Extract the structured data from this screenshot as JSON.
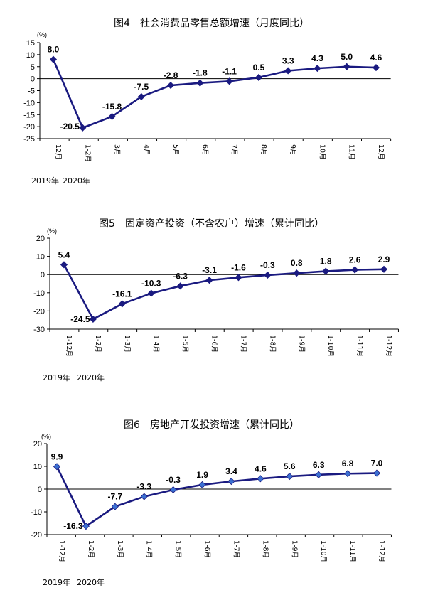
{
  "chart_data": [
    {
      "type": "line",
      "title": "图4　社会消费品零售总额增速（月度同比）",
      "unit_label": "(%)",
      "categories": [
        "12月",
        "1-2月",
        "3月",
        "4月",
        "5月",
        "6月",
        "7月",
        "8月",
        "9月",
        "10月",
        "11月",
        "12月"
      ],
      "values": [
        8.0,
        -20.5,
        -15.8,
        -7.5,
        -2.8,
        -1.8,
        -1.1,
        0.5,
        3.3,
        4.3,
        5.0,
        4.6
      ],
      "data_labels": [
        "8.0",
        "-20.5",
        "-15.8",
        "-7.5",
        "-2.8",
        "-1.8",
        "-1.1",
        "0.5",
        "3.3",
        "4.3",
        "5.0",
        "4.6"
      ],
      "yticks": [
        15,
        10,
        5,
        0,
        -5,
        -10,
        -15,
        -20,
        -25
      ],
      "ylim": [
        -25,
        15
      ],
      "year_labels": [
        "2019年",
        "2020年"
      ],
      "line_color": "#1a1a80",
      "marker_color": "#1a1a80",
      "marker": "diamond",
      "grid": false
    },
    {
      "type": "line",
      "title": "图5　固定资产投资（不含农户）增速（累计同比）",
      "unit_label": "(%)",
      "categories": [
        "1-12月",
        "1-2月",
        "1-3月",
        "1-4月",
        "1-5月",
        "1-6月",
        "1-7月",
        "1-8月",
        "1-9月",
        "1-10月",
        "1-11月",
        "1-12月"
      ],
      "values": [
        5.4,
        -24.5,
        -16.1,
        -10.3,
        -6.3,
        -3.1,
        -1.6,
        -0.3,
        0.8,
        1.8,
        2.6,
        2.9
      ],
      "data_labels": [
        "5.4",
        "-24.5",
        "-16.1",
        "-10.3",
        "-6.3",
        "-3.1",
        "-1.6",
        "-0.3",
        "0.8",
        "1.8",
        "2.6",
        "2.9"
      ],
      "yticks": [
        20,
        10,
        0,
        -10,
        -20,
        -30
      ],
      "ylim": [
        -30,
        20
      ],
      "year_labels": [
        "2019年",
        "2020年"
      ],
      "line_color": "#1a1a80",
      "marker_color": "#1a1a80",
      "marker": "diamond",
      "grid": false
    },
    {
      "type": "line",
      "title": "图6　房地产开发投资增速（累计同比）",
      "unit_label": "(%)",
      "categories": [
        "1-12月",
        "1-2月",
        "1-3月",
        "1-4月",
        "1-5月",
        "1-6月",
        "1-7月",
        "1-8月",
        "1-9月",
        "1-10月",
        "1-11月",
        "1-12月"
      ],
      "values": [
        9.9,
        -16.3,
        -7.7,
        -3.3,
        -0.3,
        1.9,
        3.4,
        4.6,
        5.6,
        6.3,
        6.8,
        7.0
      ],
      "data_labels": [
        "9.9",
        "-16.3",
        "-7.7",
        "-3.3",
        "-0.3",
        "1.9",
        "3.4",
        "4.6",
        "5.6",
        "6.3",
        "6.8",
        "7.0"
      ],
      "yticks": [
        20,
        10,
        0,
        -10,
        -20
      ],
      "ylim": [
        -20,
        20
      ],
      "year_labels": [
        "2019年",
        "2020年"
      ],
      "line_color": "#1a1a80",
      "marker_color": "#3b6fd1",
      "marker": "diamond",
      "grid": false
    }
  ]
}
